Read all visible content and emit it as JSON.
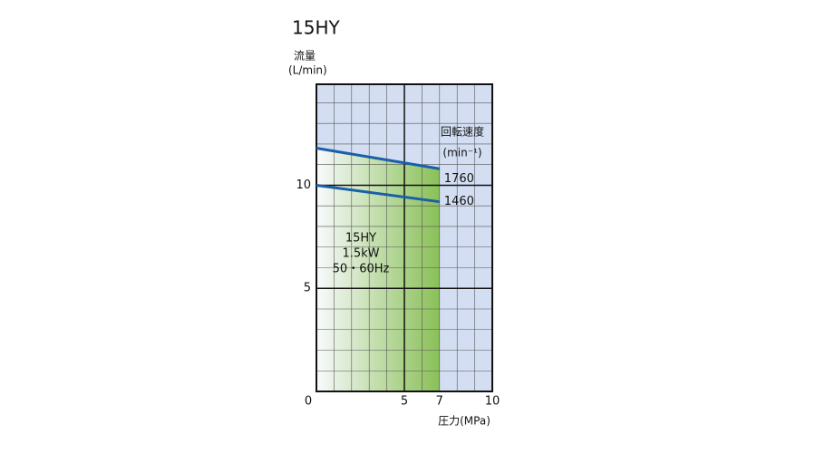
{
  "chart_data": {
    "type": "line",
    "title": "15HY",
    "y_label": [
      "流量",
      "(L/min)"
    ],
    "x_label": "圧力(MPa)",
    "legend_title": [
      "回転速度",
      "(min⁻¹)"
    ],
    "annotations": [
      "15HY",
      "1.5kW",
      "50・60Hz"
    ],
    "x": [
      0,
      7
    ],
    "series": [
      {
        "name": "1760",
        "color": "#1a5fa8",
        "values": [
          11.8,
          10.8
        ]
      },
      {
        "name": "1460",
        "color": "#1a5fa8",
        "values": [
          10,
          9.2
        ]
      }
    ],
    "xlim": [
      0,
      10
    ],
    "ylim": [
      0,
      14.9
    ],
    "xticks": [
      0,
      5,
      7,
      10
    ],
    "yticks": [
      5,
      10
    ],
    "background_color": "#d3def2",
    "fill_color": "#7dbb3c",
    "grid": true
  }
}
